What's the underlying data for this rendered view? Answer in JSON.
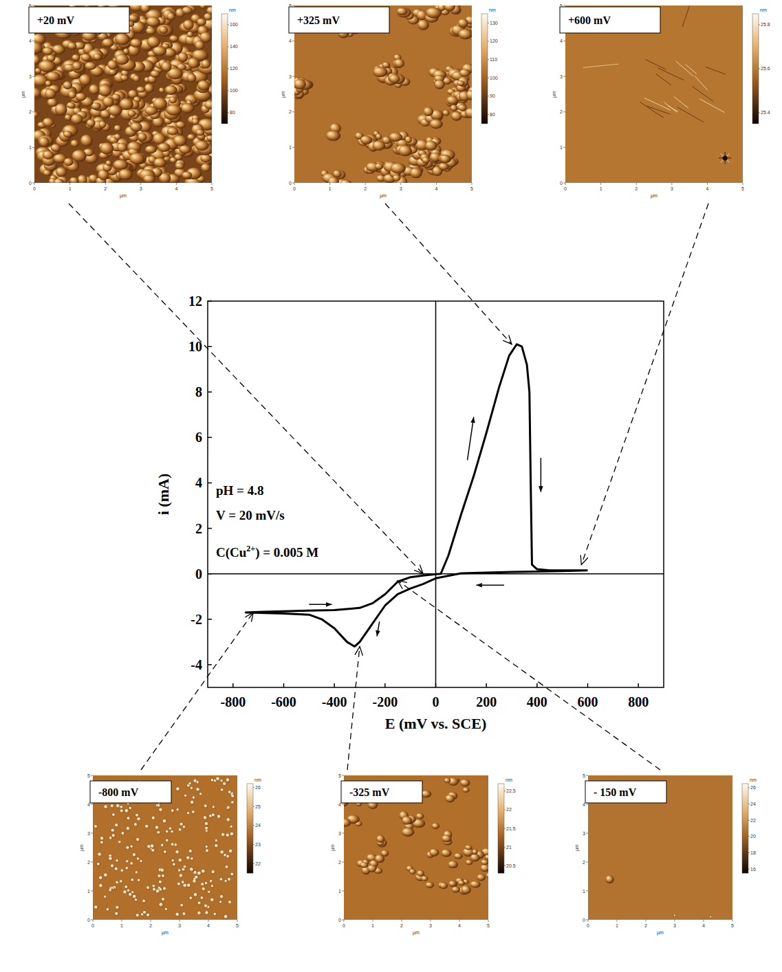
{
  "chart_data": {
    "type": "line",
    "x_label": "E (mV vs. SCE)",
    "y_label": "i (mA)",
    "xlim": [
      -900,
      900
    ],
    "xticks": [
      -800,
      -600,
      -400,
      -200,
      0,
      200,
      400,
      600,
      800
    ],
    "ylim": [
      -5,
      12
    ],
    "yticks": [
      -4,
      -2,
      0,
      2,
      4,
      6,
      8,
      10,
      12
    ],
    "grid": false,
    "x": [
      600,
      500,
      400,
      300,
      200,
      100,
      0,
      -50,
      -100,
      -150,
      -200,
      -250,
      -300,
      -320,
      -350,
      -400,
      -450,
      -500,
      -600,
      -700,
      -750,
      -700,
      -600,
      -500,
      -400,
      -300,
      -250,
      -200,
      -150,
      -100,
      -50,
      0,
      20,
      50,
      100,
      150,
      200,
      250,
      290,
      320,
      340,
      360,
      370,
      375,
      380,
      400,
      450,
      500,
      600
    ],
    "series": [
      {
        "color": "#000000",
        "values": [
          0.15,
          0.12,
          0.1,
          0.08,
          0.05,
          0.02,
          -0.2,
          -0.45,
          -0.65,
          -0.9,
          -1.4,
          -2.2,
          -3.0,
          -3.2,
          -3.0,
          -2.4,
          -2.0,
          -1.8,
          -1.75,
          -1.72,
          -1.7,
          -1.68,
          -1.65,
          -1.62,
          -1.6,
          -1.5,
          -1.3,
          -0.9,
          -0.35,
          -0.15,
          -0.08,
          -0.02,
          0.0,
          0.8,
          2.6,
          4.3,
          6.2,
          8.2,
          9.6,
          10.1,
          10.0,
          9.2,
          8.0,
          4.0,
          0.4,
          0.2,
          0.15,
          0.15,
          0.15
        ]
      }
    ],
    "annotations": [
      {
        "text": "pH = 4.8"
      },
      {
        "text": "V = 20 mV/s"
      },
      {
        "text": "C(Cu",
        "sup": "2+",
        "text_after": ") = 0.005 M"
      }
    ]
  },
  "afm_images": [
    {
      "label": "+20 mV",
      "arrow_to": [
        -50,
        0
      ],
      "xlim": [
        0,
        5
      ],
      "ylim": [
        0,
        5
      ],
      "xticks": [
        0,
        1,
        2,
        3,
        4,
        5
      ],
      "yticks": [
        0,
        1,
        2,
        3,
        4,
        5
      ],
      "axis_label": "µm",
      "colorbar": {
        "label": "nm",
        "range": [
          70,
          170
        ],
        "ticks": [
          80,
          100,
          120,
          140,
          160
        ]
      }
    },
    {
      "label": "+325 mV",
      "arrow_to": [
        300,
        10.1
      ],
      "xlim": [
        0,
        5
      ],
      "ylim": [
        0,
        5
      ],
      "xticks": [
        0,
        1,
        2,
        3,
        4,
        5
      ],
      "yticks": [
        0,
        1,
        2,
        3,
        4,
        5
      ],
      "axis_label": "µm",
      "colorbar": {
        "label": "nm",
        "range": [
          75,
          135
        ],
        "ticks": [
          80,
          90,
          100,
          110,
          120,
          130
        ]
      }
    },
    {
      "label": "+600 mV",
      "arrow_to": [
        575,
        0.4
      ],
      "xlim": [
        0,
        5
      ],
      "ylim": [
        0,
        5
      ],
      "xticks": [
        0,
        1,
        2,
        3,
        4,
        5
      ],
      "yticks": [
        0,
        1,
        2,
        3,
        4,
        5
      ],
      "axis_label": "µm",
      "colorbar": {
        "label": "nm",
        "range": [
          25.35,
          25.85
        ],
        "ticks": [
          25.4,
          25.6,
          25.8
        ]
      }
    },
    {
      "label": "-800 mV",
      "arrow_to": [
        -720,
        -1.7
      ],
      "xlim": [
        0,
        5
      ],
      "ylim": [
        0,
        5
      ],
      "xticks": [
        0,
        1,
        2,
        3,
        4,
        5
      ],
      "yticks": [
        0,
        1,
        2,
        3,
        4,
        5
      ],
      "axis_label": "µm",
      "colorbar": {
        "label": "nm",
        "range": [
          21.5,
          26.2
        ],
        "ticks": [
          22,
          23,
          24,
          25,
          26
        ]
      }
    },
    {
      "label": "-325 mV",
      "arrow_to": [
        -300,
        -3.2
      ],
      "xlim": [
        0,
        5
      ],
      "ylim": [
        0,
        5
      ],
      "xticks": [
        0,
        1,
        2,
        3,
        4,
        5
      ],
      "yticks": [
        0,
        1,
        2,
        3,
        4,
        5
      ],
      "axis_label": "µm",
      "colorbar": {
        "label": "nm",
        "range": [
          20.3,
          22.7
        ],
        "ticks": [
          20.5,
          21,
          21.5,
          22,
          22.5
        ]
      }
    },
    {
      "label": "- 150 mV",
      "arrow_to": [
        -150,
        -0.3
      ],
      "xlim": [
        0,
        5
      ],
      "ylim": [
        0,
        5
      ],
      "xticks": [
        0,
        1,
        2,
        3,
        4,
        5
      ],
      "yticks": [
        0,
        1,
        2,
        3,
        4,
        5
      ],
      "axis_label": "µm",
      "colorbar": {
        "label": "nm",
        "range": [
          15.5,
          26.5
        ],
        "ticks": [
          16,
          18,
          20,
          22,
          24,
          26
        ]
      }
    }
  ]
}
